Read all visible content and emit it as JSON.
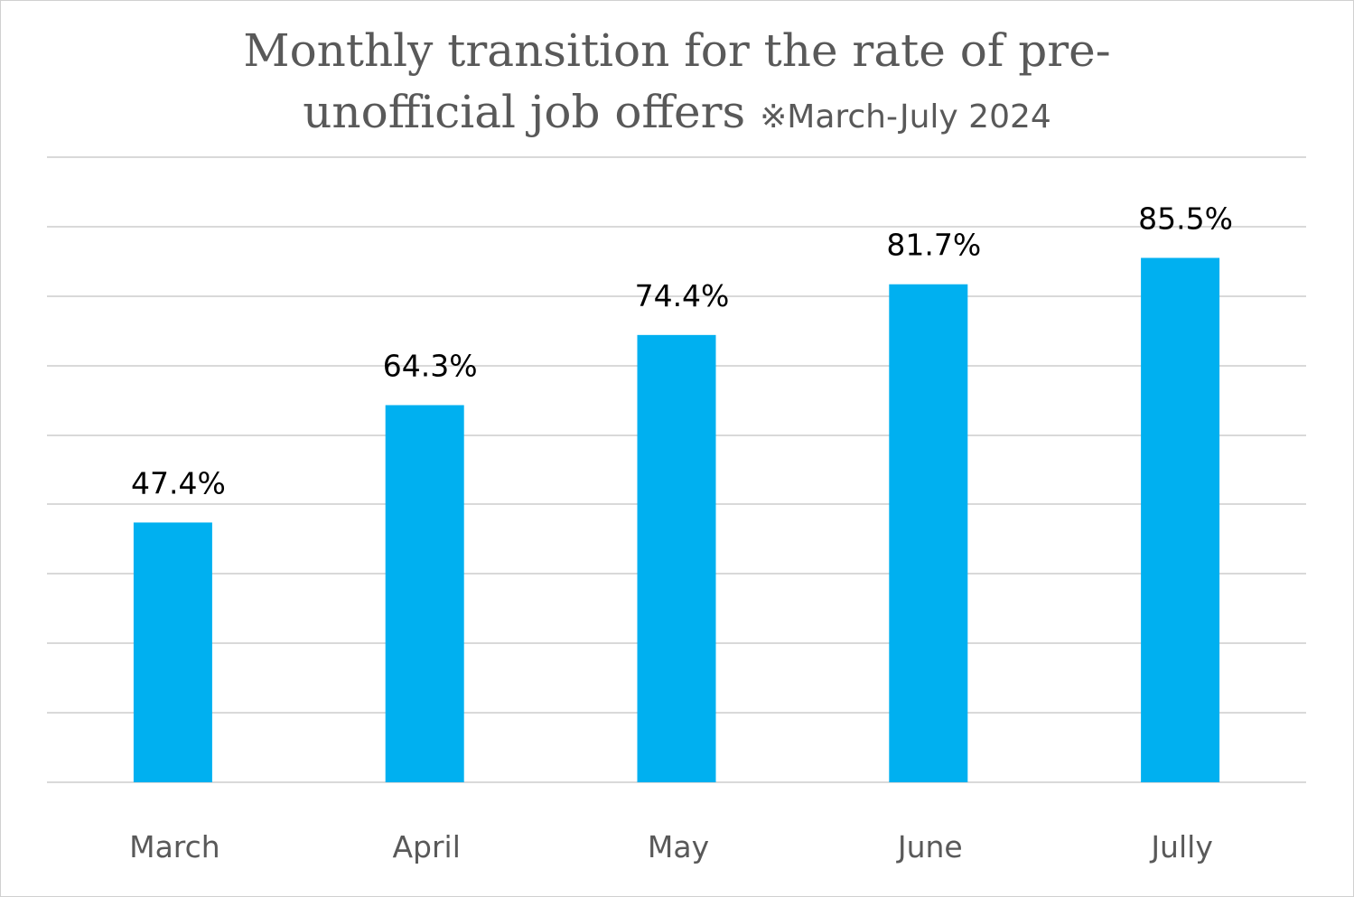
{
  "chart_data": {
    "type": "bar",
    "title": "Monthly transition for the rate of pre-unofficial job offers",
    "title_line1": "Monthly transition for the rate of pre-",
    "title_line2": "unofficial job offers",
    "subtitle": "※March-July 2024",
    "categories": [
      "March",
      "April",
      "May",
      "June",
      "Jully"
    ],
    "values": [
      47.4,
      64.3,
      74.4,
      81.7,
      85.5
    ],
    "data_labels": [
      "47.4%",
      "64.3%",
      "74.4%",
      "81.7%",
      "85.5%"
    ],
    "ylim": [
      10,
      100
    ],
    "yticks": [
      10,
      20,
      30,
      40,
      50,
      60,
      70,
      80,
      90,
      100
    ],
    "xlabel": "",
    "ylabel": "",
    "grid": true,
    "legend": "none",
    "bar_color": "#00b0f0",
    "gridline_color": "#d9d9d9",
    "title_color": "#595959",
    "tick_label_color": "#595959",
    "data_label_color": "#000000"
  }
}
